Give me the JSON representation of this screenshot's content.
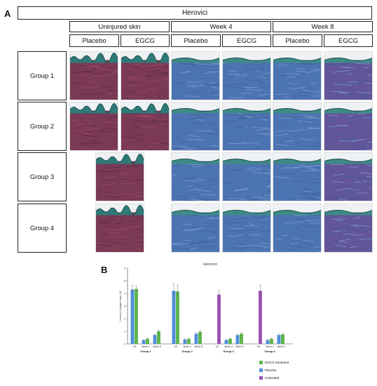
{
  "figure": {
    "panel_a_label": "A",
    "panel_b_label": "B",
    "stain_title": "Herovici",
    "column_groups": [
      {
        "label": "Uninjured skin"
      },
      {
        "label": "Week 4"
      },
      {
        "label": "Week 8"
      }
    ],
    "column_labels": [
      "Placebo",
      "EGCG",
      "Placebo",
      "EGCG",
      "Placebo",
      "EGCG"
    ],
    "row_labels": [
      "Group 1",
      "Group 2",
      "Group 3",
      "Group 4"
    ],
    "tile_colors": {
      "uninjured_dermis": "#7a3a55",
      "uninjured_epidermis": "#2e7a78",
      "wound_dermis": "#4d74b2",
      "wound_epidermis": "#3e8a86",
      "wound_dermis_purple": "#62559a"
    }
  },
  "chart_data": {
    "type": "bar",
    "title": "Herovici",
    "ylabel": "Herovici Collagen ratio (-B)",
    "ylim": [
      0,
      6
    ],
    "yticks": [
      0,
      1,
      2,
      3,
      4,
      5,
      6
    ],
    "groups": [
      "Group 1",
      "Group 2",
      "Group 3",
      "Group 4"
    ],
    "categories": [
      "US",
      "Week 4",
      "Week 8"
    ],
    "series": [
      {
        "name": "EGCG treatment",
        "color": "#5db54a"
      },
      {
        "name": "Placebo",
        "color": "#4f8fd8"
      },
      {
        "name": "Untreated",
        "color": "#9b52b5"
      }
    ],
    "bars": [
      {
        "group": 0,
        "category": "US",
        "series": "Placebo",
        "value": 4.3,
        "err": 0.35
      },
      {
        "group": 0,
        "category": "US",
        "series": "EGCG treatment",
        "value": 4.35,
        "err": 0.25
      },
      {
        "group": 0,
        "category": "Week 4",
        "series": "Placebo",
        "value": 0.3,
        "err": 0.05
      },
      {
        "group": 0,
        "category": "Week 4",
        "series": "EGCG treatment",
        "value": 0.4,
        "err": 0.06
      },
      {
        "group": 0,
        "category": "Week 8",
        "series": "Placebo",
        "value": 0.7,
        "err": 0.08
      },
      {
        "group": 0,
        "category": "Week 8",
        "series": "EGCG treatment",
        "value": 1.0,
        "err": 0.1
      },
      {
        "group": 1,
        "category": "US",
        "series": "Placebo",
        "value": 4.2,
        "err": 0.6
      },
      {
        "group": 1,
        "category": "US",
        "series": "EGCG treatment",
        "value": 4.15,
        "err": 0.5
      },
      {
        "group": 1,
        "category": "Week 4",
        "series": "Placebo",
        "value": 0.35,
        "err": 0.05
      },
      {
        "group": 1,
        "category": "Week 4",
        "series": "EGCG treatment",
        "value": 0.4,
        "err": 0.06
      },
      {
        "group": 1,
        "category": "Week 8",
        "series": "Placebo",
        "value": 0.8,
        "err": 0.1
      },
      {
        "group": 1,
        "category": "Week 8",
        "series": "EGCG treatment",
        "value": 0.95,
        "err": 0.15
      },
      {
        "group": 2,
        "category": "US",
        "series": "Untreated",
        "value": 3.9,
        "err": 0.35
      },
      {
        "group": 2,
        "category": "Week 4",
        "series": "Placebo",
        "value": 0.3,
        "err": 0.05
      },
      {
        "group": 2,
        "category": "Week 4",
        "series": "EGCG treatment",
        "value": 0.4,
        "err": 0.06
      },
      {
        "group": 2,
        "category": "Week 8",
        "series": "Placebo",
        "value": 0.7,
        "err": 0.1
      },
      {
        "group": 2,
        "category": "Week 8",
        "series": "EGCG treatment",
        "value": 0.8,
        "err": 0.1
      },
      {
        "group": 3,
        "category": "US",
        "series": "Untreated",
        "value": 4.2,
        "err": 0.5
      },
      {
        "group": 3,
        "category": "Week 4",
        "series": "Placebo",
        "value": 0.3,
        "err": 0.05
      },
      {
        "group": 3,
        "category": "Week 4",
        "series": "EGCG treatment",
        "value": 0.4,
        "err": 0.06
      },
      {
        "group": 3,
        "category": "Week 8",
        "series": "Placebo",
        "value": 0.7,
        "err": 0.1
      },
      {
        "group": 3,
        "category": "Week 8",
        "series": "EGCG treatment",
        "value": 0.75,
        "err": 0.1
      }
    ]
  }
}
